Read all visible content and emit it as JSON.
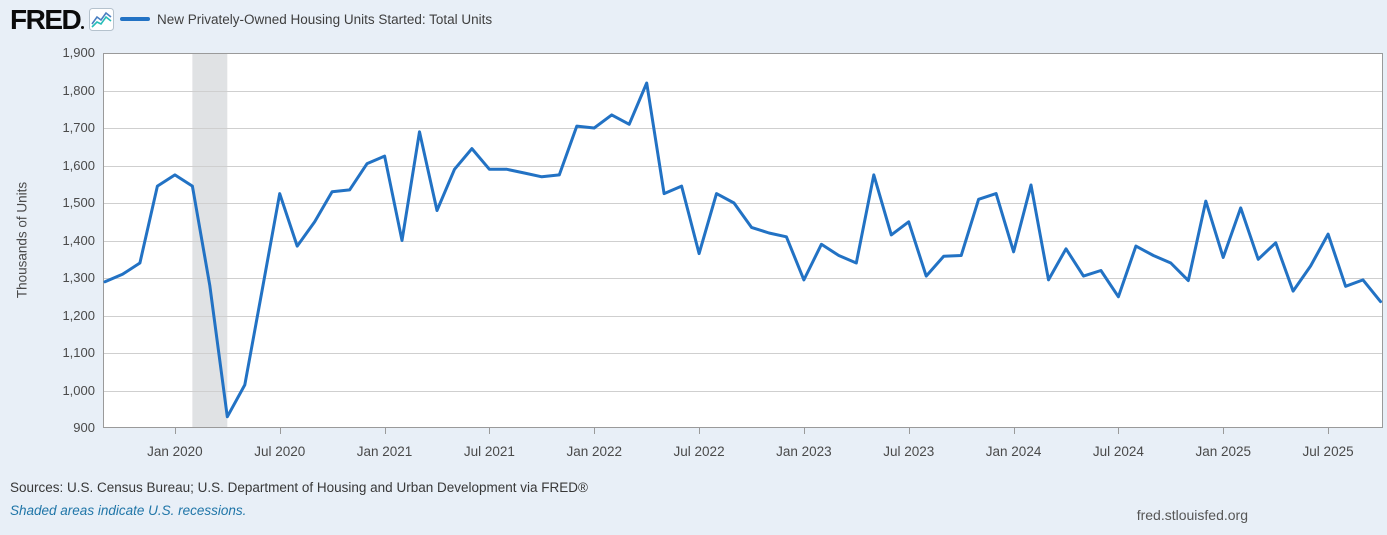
{
  "header": {
    "logo_text": "FRED",
    "legend_label": "New Privately-Owned Housing Units Started: Total Units"
  },
  "footer": {
    "sources": "Sources: U.S. Census Bureau; U.S. Department of Housing and Urban Development via FRED®",
    "recession_note": "Shaded areas indicate U.S. recessions.",
    "site_link": "fred.stlouisfed.org"
  },
  "colors": {
    "background": "#e8eff7",
    "plot_background": "#ffffff",
    "series_line": "#2272c4",
    "gridline": "#cfcfcf",
    "plot_border": "#9a9a9a",
    "recession_band": "#e0e2e4",
    "axis_text": "#4a4a4a",
    "recession_note_text": "#2076a8",
    "logo_icon_teal": "#27bdb8",
    "logo_icon_blue": "#4a7fc1"
  },
  "chart_data": {
    "type": "line",
    "title": "New Privately-Owned Housing Units Started: Total Units",
    "xlabel": "",
    "ylabel": "Thousands of Units",
    "ylim": [
      900,
      1900
    ],
    "grid": true,
    "legend_position": "top-left",
    "frequency": "monthly",
    "x": [
      "2019-09",
      "2019-10",
      "2019-11",
      "2019-12",
      "2020-01",
      "2020-02",
      "2020-03",
      "2020-04",
      "2020-05",
      "2020-06",
      "2020-07",
      "2020-08",
      "2020-09",
      "2020-10",
      "2020-11",
      "2020-12",
      "2021-01",
      "2021-02",
      "2021-03",
      "2021-04",
      "2021-05",
      "2021-06",
      "2021-07",
      "2021-08",
      "2021-09",
      "2021-10",
      "2021-11",
      "2021-12",
      "2022-01",
      "2022-02",
      "2022-03",
      "2022-04",
      "2022-05",
      "2022-06",
      "2022-07",
      "2022-08",
      "2022-09",
      "2022-10",
      "2022-11",
      "2022-12",
      "2023-01",
      "2023-02",
      "2023-03",
      "2023-04",
      "2023-05",
      "2023-06",
      "2023-07",
      "2023-08",
      "2023-09",
      "2023-10",
      "2023-11",
      "2023-12",
      "2024-01",
      "2024-02",
      "2024-03",
      "2024-04",
      "2024-05",
      "2024-06",
      "2024-07",
      "2024-08",
      "2024-09",
      "2024-10",
      "2024-11",
      "2024-12",
      "2025-01",
      "2025-02",
      "2025-03",
      "2025-04",
      "2025-05",
      "2025-06",
      "2025-07",
      "2025-08",
      "2025-09",
      "2025-10"
    ],
    "values": [
      1290,
      1310,
      1340,
      1545,
      1575,
      1545,
      1280,
      930,
      1015,
      1270,
      1525,
      1385,
      1450,
      1530,
      1535,
      1605,
      1625,
      1400,
      1690,
      1480,
      1590,
      1645,
      1590,
      1590,
      1580,
      1570,
      1575,
      1705,
      1700,
      1735,
      1710,
      1820,
      1525,
      1545,
      1365,
      1525,
      1500,
      1435,
      1420,
      1410,
      1295,
      1390,
      1360,
      1340,
      1575,
      1415,
      1450,
      1305,
      1358,
      1360,
      1510,
      1525,
      1370,
      1548,
      1295,
      1378,
      1305,
      1320,
      1250,
      1385,
      1360,
      1340,
      1293,
      1505,
      1355,
      1487,
      1350,
      1394,
      1265,
      1332,
      1417,
      1278,
      1295,
      1237
    ],
    "y_ticks": [
      900,
      1000,
      1100,
      1200,
      1300,
      1400,
      1500,
      1600,
      1700,
      1800,
      1900
    ],
    "y_tick_labels": [
      "900",
      "1,000",
      "1,100",
      "1,200",
      "1,300",
      "1,400",
      "1,500",
      "1,600",
      "1,700",
      "1,800",
      "1,900"
    ],
    "x_tick_labels": [
      "Jan 2020",
      "Jul 2020",
      "Jan 2021",
      "Jul 2021",
      "Jan 2022",
      "Jul 2022",
      "Jan 2023",
      "Jul 2023",
      "Jan 2024",
      "Jul 2024",
      "Jan 2025",
      "Jul 2025"
    ],
    "x_tick_start_index": 4,
    "x_tick_every": 6,
    "recession_bands": [
      {
        "from": "2020-02",
        "to": "2020-04"
      }
    ]
  }
}
